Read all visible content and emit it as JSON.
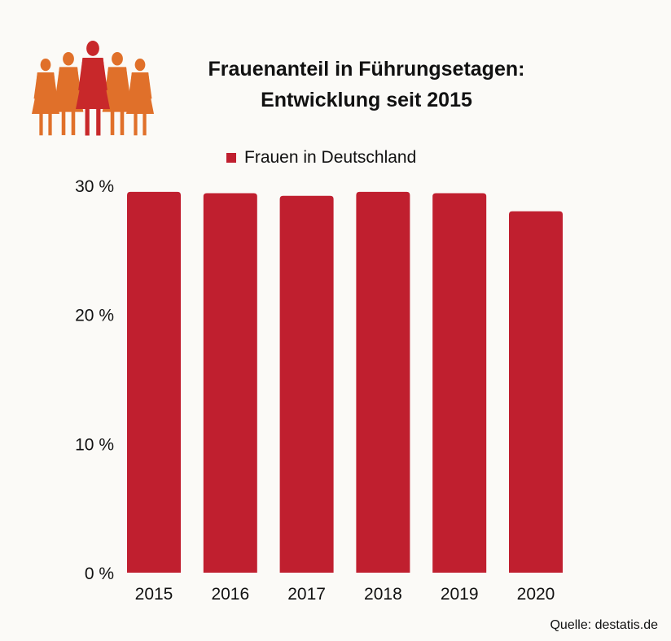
{
  "chart_data": {
    "type": "bar",
    "title": "Frauenanteil in Führungsetagen:",
    "subtitle": "Entwicklung seit 2015",
    "categories": [
      "2015",
      "2016",
      "2017",
      "2018",
      "2019",
      "2020"
    ],
    "series": [
      {
        "name": "Frauen in Deutschland",
        "values": [
          29.5,
          29.4,
          29.2,
          29.5,
          29.4,
          28.0
        ],
        "color": "#c01f2f"
      }
    ],
    "ylim": [
      0,
      30
    ],
    "yticks": [
      0,
      10,
      20,
      30
    ],
    "ytick_labels": [
      "0 %",
      "10 %",
      "20 %",
      "30 %"
    ],
    "grid": false,
    "legend": "top-center",
    "xlabel": "",
    "ylabel": ""
  },
  "source": "Quelle: destatis.de",
  "icon": "group-of-women-icon",
  "colors": {
    "bar": "#c01f2f",
    "icon_main": "#c8282a",
    "icon_side": "#e0702a",
    "background": "#fbfaf7"
  }
}
